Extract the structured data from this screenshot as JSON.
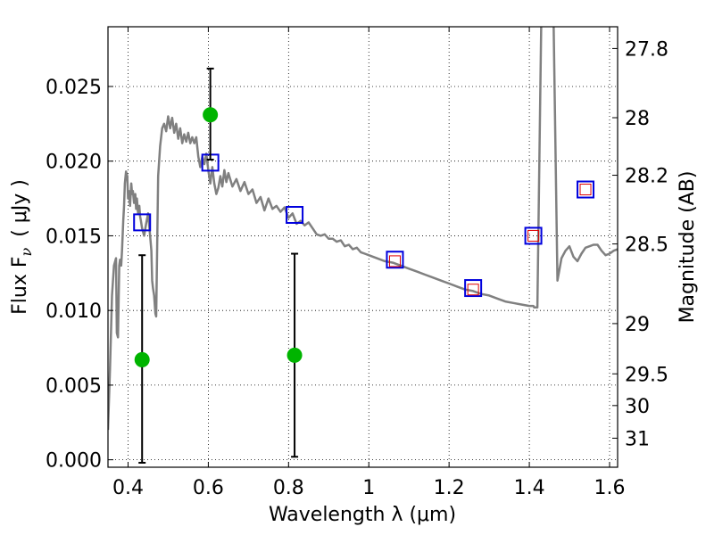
{
  "chart_data": {
    "type": "line",
    "xlabel": "Wavelength  λ (μm)",
    "ylabel": "Flux  F",
    "ylabel_sub": "ν",
    "ylabel_unit": "( μJy )",
    "ylabel_right": "Magnitude (AB)",
    "xlim": [
      0.35,
      1.62
    ],
    "ylim": [
      -0.0005,
      0.029
    ],
    "grid": true,
    "xticks": [
      {
        "value": 0.4,
        "label": "0.4"
      },
      {
        "value": 0.6,
        "label": "0.6"
      },
      {
        "value": 0.8,
        "label": "0.8"
      },
      {
        "value": 1.0,
        "label": "1"
      },
      {
        "value": 1.2,
        "label": "1.2"
      },
      {
        "value": 1.4,
        "label": "1.4"
      },
      {
        "value": 1.6,
        "label": "1.6"
      }
    ],
    "yticks": [
      {
        "value": 0.0,
        "label": "0.000"
      },
      {
        "value": 0.005,
        "label": "0.005"
      },
      {
        "value": 0.01,
        "label": "0.010"
      },
      {
        "value": 0.015,
        "label": "0.015"
      },
      {
        "value": 0.02,
        "label": "0.020"
      },
      {
        "value": 0.025,
        "label": "0.025"
      }
    ],
    "magnitude_ticks": [
      {
        "mag": 27.8,
        "label": "27.8"
      },
      {
        "mag": 28.0,
        "label": "28"
      },
      {
        "mag": 28.2,
        "label": "28.2"
      },
      {
        "mag": 28.5,
        "label": "28.5"
      },
      {
        "mag": 29.0,
        "label": "29"
      },
      {
        "mag": 29.5,
        "label": "29.5"
      },
      {
        "mag": 30.0,
        "label": "30"
      },
      {
        "mag": 31.0,
        "label": "31"
      }
    ],
    "sed_model": {
      "color": "#808080",
      "x": [
        0.35,
        0.355,
        0.36,
        0.365,
        0.37,
        0.372,
        0.375,
        0.378,
        0.38,
        0.383,
        0.385,
        0.388,
        0.39,
        0.392,
        0.395,
        0.398,
        0.4,
        0.402,
        0.405,
        0.408,
        0.41,
        0.412,
        0.415,
        0.418,
        0.42,
        0.422,
        0.425,
        0.428,
        0.43,
        0.432,
        0.435,
        0.44,
        0.445,
        0.45,
        0.455,
        0.458,
        0.46,
        0.462,
        0.465,
        0.468,
        0.47,
        0.475,
        0.48,
        0.485,
        0.49,
        0.495,
        0.5,
        0.505,
        0.51,
        0.515,
        0.52,
        0.525,
        0.53,
        0.535,
        0.54,
        0.545,
        0.55,
        0.555,
        0.56,
        0.565,
        0.57,
        0.575,
        0.58,
        0.585,
        0.59,
        0.595,
        0.6,
        0.605,
        0.61,
        0.615,
        0.62,
        0.625,
        0.63,
        0.635,
        0.64,
        0.645,
        0.65,
        0.66,
        0.67,
        0.68,
        0.69,
        0.7,
        0.71,
        0.72,
        0.73,
        0.74,
        0.75,
        0.76,
        0.77,
        0.78,
        0.79,
        0.8,
        0.81,
        0.82,
        0.83,
        0.84,
        0.85,
        0.86,
        0.87,
        0.88,
        0.89,
        0.9,
        0.91,
        0.92,
        0.93,
        0.94,
        0.95,
        0.96,
        0.97,
        0.98,
        0.99,
        1.0,
        1.02,
        1.04,
        1.06,
        1.08,
        1.1,
        1.12,
        1.14,
        1.16,
        1.18,
        1.2,
        1.22,
        1.24,
        1.26,
        1.28,
        1.3,
        1.32,
        1.34,
        1.36,
        1.38,
        1.4,
        1.41,
        1.412,
        1.42,
        1.43,
        1.44,
        1.45,
        1.455,
        1.46,
        1.47,
        1.48,
        1.49,
        1.5,
        1.51,
        1.52,
        1.53,
        1.54,
        1.55,
        1.56,
        1.57,
        1.58,
        1.59,
        1.6,
        1.61,
        1.62
      ],
      "y": [
        0.002,
        0.006,
        0.011,
        0.013,
        0.0135,
        0.0085,
        0.0082,
        0.013,
        0.0134,
        0.013,
        0.014,
        0.016,
        0.017,
        0.0185,
        0.0193,
        0.019,
        0.0175,
        0.018,
        0.017,
        0.0185,
        0.0178,
        0.018,
        0.0172,
        0.0178,
        0.0168,
        0.0175,
        0.0165,
        0.017,
        0.0163,
        0.016,
        0.0155,
        0.015,
        0.0158,
        0.0165,
        0.015,
        0.014,
        0.012,
        0.0115,
        0.011,
        0.0098,
        0.0096,
        0.019,
        0.021,
        0.0222,
        0.0225,
        0.022,
        0.023,
        0.0222,
        0.0229,
        0.0219,
        0.0225,
        0.0215,
        0.0222,
        0.0212,
        0.0218,
        0.0213,
        0.0219,
        0.0212,
        0.0216,
        0.0212,
        0.0216,
        0.0203,
        0.0196,
        0.0203,
        0.0198,
        0.0205,
        0.0194,
        0.0185,
        0.0196,
        0.0185,
        0.0178,
        0.0182,
        0.019,
        0.0183,
        0.0194,
        0.0186,
        0.0192,
        0.0183,
        0.0188,
        0.018,
        0.0186,
        0.0178,
        0.0181,
        0.0172,
        0.0176,
        0.0167,
        0.0175,
        0.0168,
        0.017,
        0.0166,
        0.0169,
        0.0162,
        0.0165,
        0.0158,
        0.016,
        0.0157,
        0.0159,
        0.0155,
        0.0151,
        0.015,
        0.0151,
        0.0148,
        0.0148,
        0.0146,
        0.0147,
        0.0143,
        0.0144,
        0.0141,
        0.0142,
        0.0139,
        0.0138,
        0.0137,
        0.0135,
        0.0133,
        0.0132,
        0.013,
        0.0128,
        0.0126,
        0.0124,
        0.0122,
        0.012,
        0.0118,
        0.0116,
        0.0114,
        0.0113,
        0.0111,
        0.011,
        0.0108,
        0.0106,
        0.0105,
        0.0104,
        0.0103,
        0.0103,
        0.0102,
        0.0102,
        0.03,
        0.03,
        0.03,
        0.03,
        0.03,
        0.012,
        0.0135,
        0.014,
        0.0143,
        0.0136,
        0.0133,
        0.0138,
        0.0142,
        0.0143,
        0.0144,
        0.0144,
        0.014,
        0.0137,
        0.0138,
        0.014,
        0.0141
      ]
    },
    "series": [
      {
        "name": "",
        "marker": "open-square",
        "color": "#0000dd",
        "x": [
          0.435,
          0.605,
          0.815,
          1.065,
          1.26,
          1.41,
          1.54
        ],
        "y": [
          0.0159,
          0.0199,
          0.0164,
          0.0134,
          0.0115,
          0.015,
          0.0181
        ]
      },
      {
        "name": "",
        "marker": "small-open-square",
        "color": "#e00000",
        "x": [
          1.065,
          1.26,
          1.41,
          1.54
        ],
        "y": [
          0.0133,
          0.0114,
          0.015,
          0.0181
        ]
      },
      {
        "name": "",
        "marker": "filled-circle",
        "color": "#00b400",
        "x": [
          0.435,
          0.605,
          0.815
        ],
        "y": [
          0.0067,
          0.0231,
          0.007
        ],
        "err_low": [
          0.0069,
          0.003,
          0.0068
        ],
        "err_high": [
          0.007,
          0.0031,
          0.0068
        ]
      }
    ]
  }
}
